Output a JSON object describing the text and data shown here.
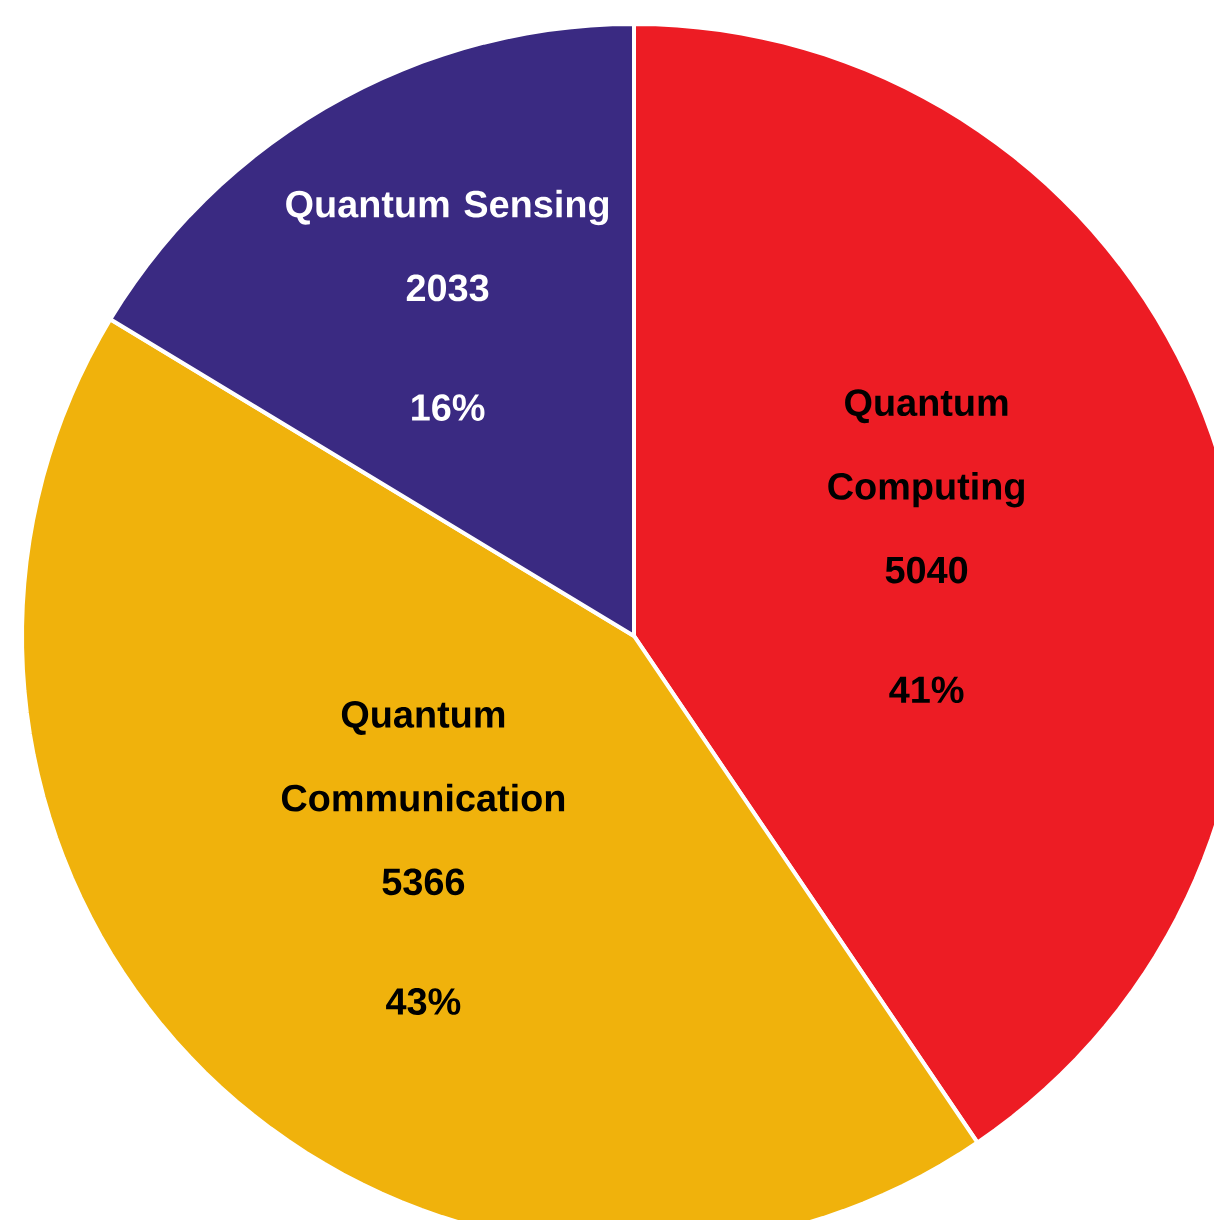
{
  "chart_data": {
    "type": "pie",
    "categories": [
      "Quantum Computing",
      "Quantum Communication",
      "Quantum Sensing"
    ],
    "values": [
      5040,
      5366,
      2033
    ],
    "colors": [
      "#ed1c24",
      "#f0b20c",
      "#3a2a82"
    ],
    "data_labels": true,
    "annotations": [
      {
        "text": "41%",
        "x": "Quantum Computing"
      },
      {
        "text": "43%",
        "x": "Quantum Communication"
      },
      {
        "text": "16%",
        "x": "Quantum Sensing"
      }
    ]
  }
}
